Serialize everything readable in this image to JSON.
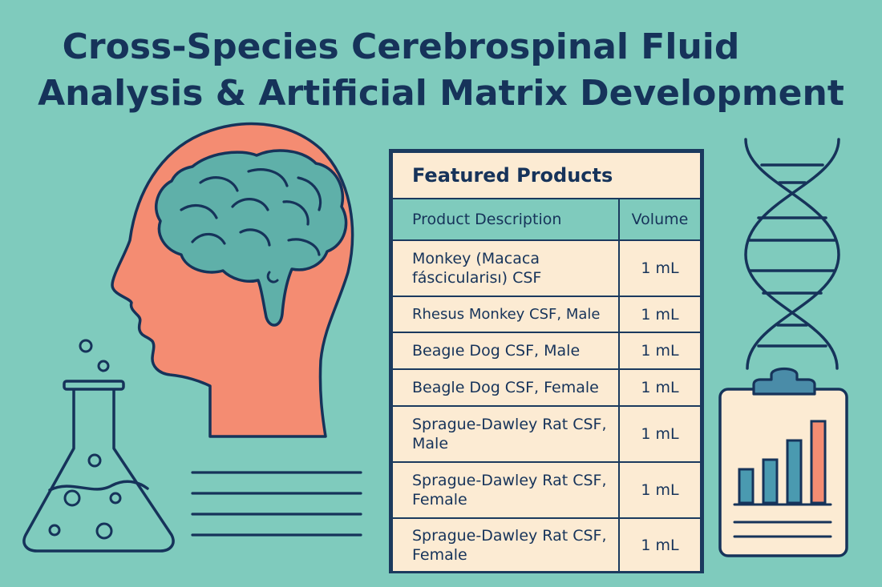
{
  "title": {
    "line1": "Cross-Species Cerebrospinal Fluid",
    "line2": "Analysis & Artificial Matrix Development"
  },
  "table": {
    "caption": "Featured Products",
    "headers": {
      "description": "Product Description",
      "volume": "Volume"
    },
    "rows": [
      {
        "description": "Monkey (Macaca fáscicularisı) CSF",
        "volume": "1 mL"
      },
      {
        "description": "Rhesus Monkey CSF, Male",
        "volume": "1 mL"
      },
      {
        "description": "Beagıe Dog CSF, Male",
        "volume": "1 mL"
      },
      {
        "description": "Beagle Dog CSF, Female",
        "volume": "1 mL"
      },
      {
        "description": "Sprague-Dawley Rat CSF, Male",
        "volume": "1 mL"
      },
      {
        "description": "Sprague-Dawley Rat CSF, Female",
        "volume": "1 mL"
      },
      {
        "description": "Sprague-Dawley Rat CSF, Female",
        "volume": "1 mL"
      }
    ]
  },
  "illustrations": {
    "head": "head-silhouette-icon",
    "brain": "brain-icon",
    "flask": "flask-icon",
    "dna": "dna-helix-icon",
    "clipboard": "clipboard-chart-icon",
    "lines": "text-lines-icon"
  },
  "colors": {
    "background": "#7fcbbd",
    "navy": "#16335a",
    "head": "#f48c72",
    "brain": "#5fb0a9",
    "paper": "#fcebd3",
    "bar_teal": "#4a9ab0",
    "bar_orange": "#f48c72"
  }
}
